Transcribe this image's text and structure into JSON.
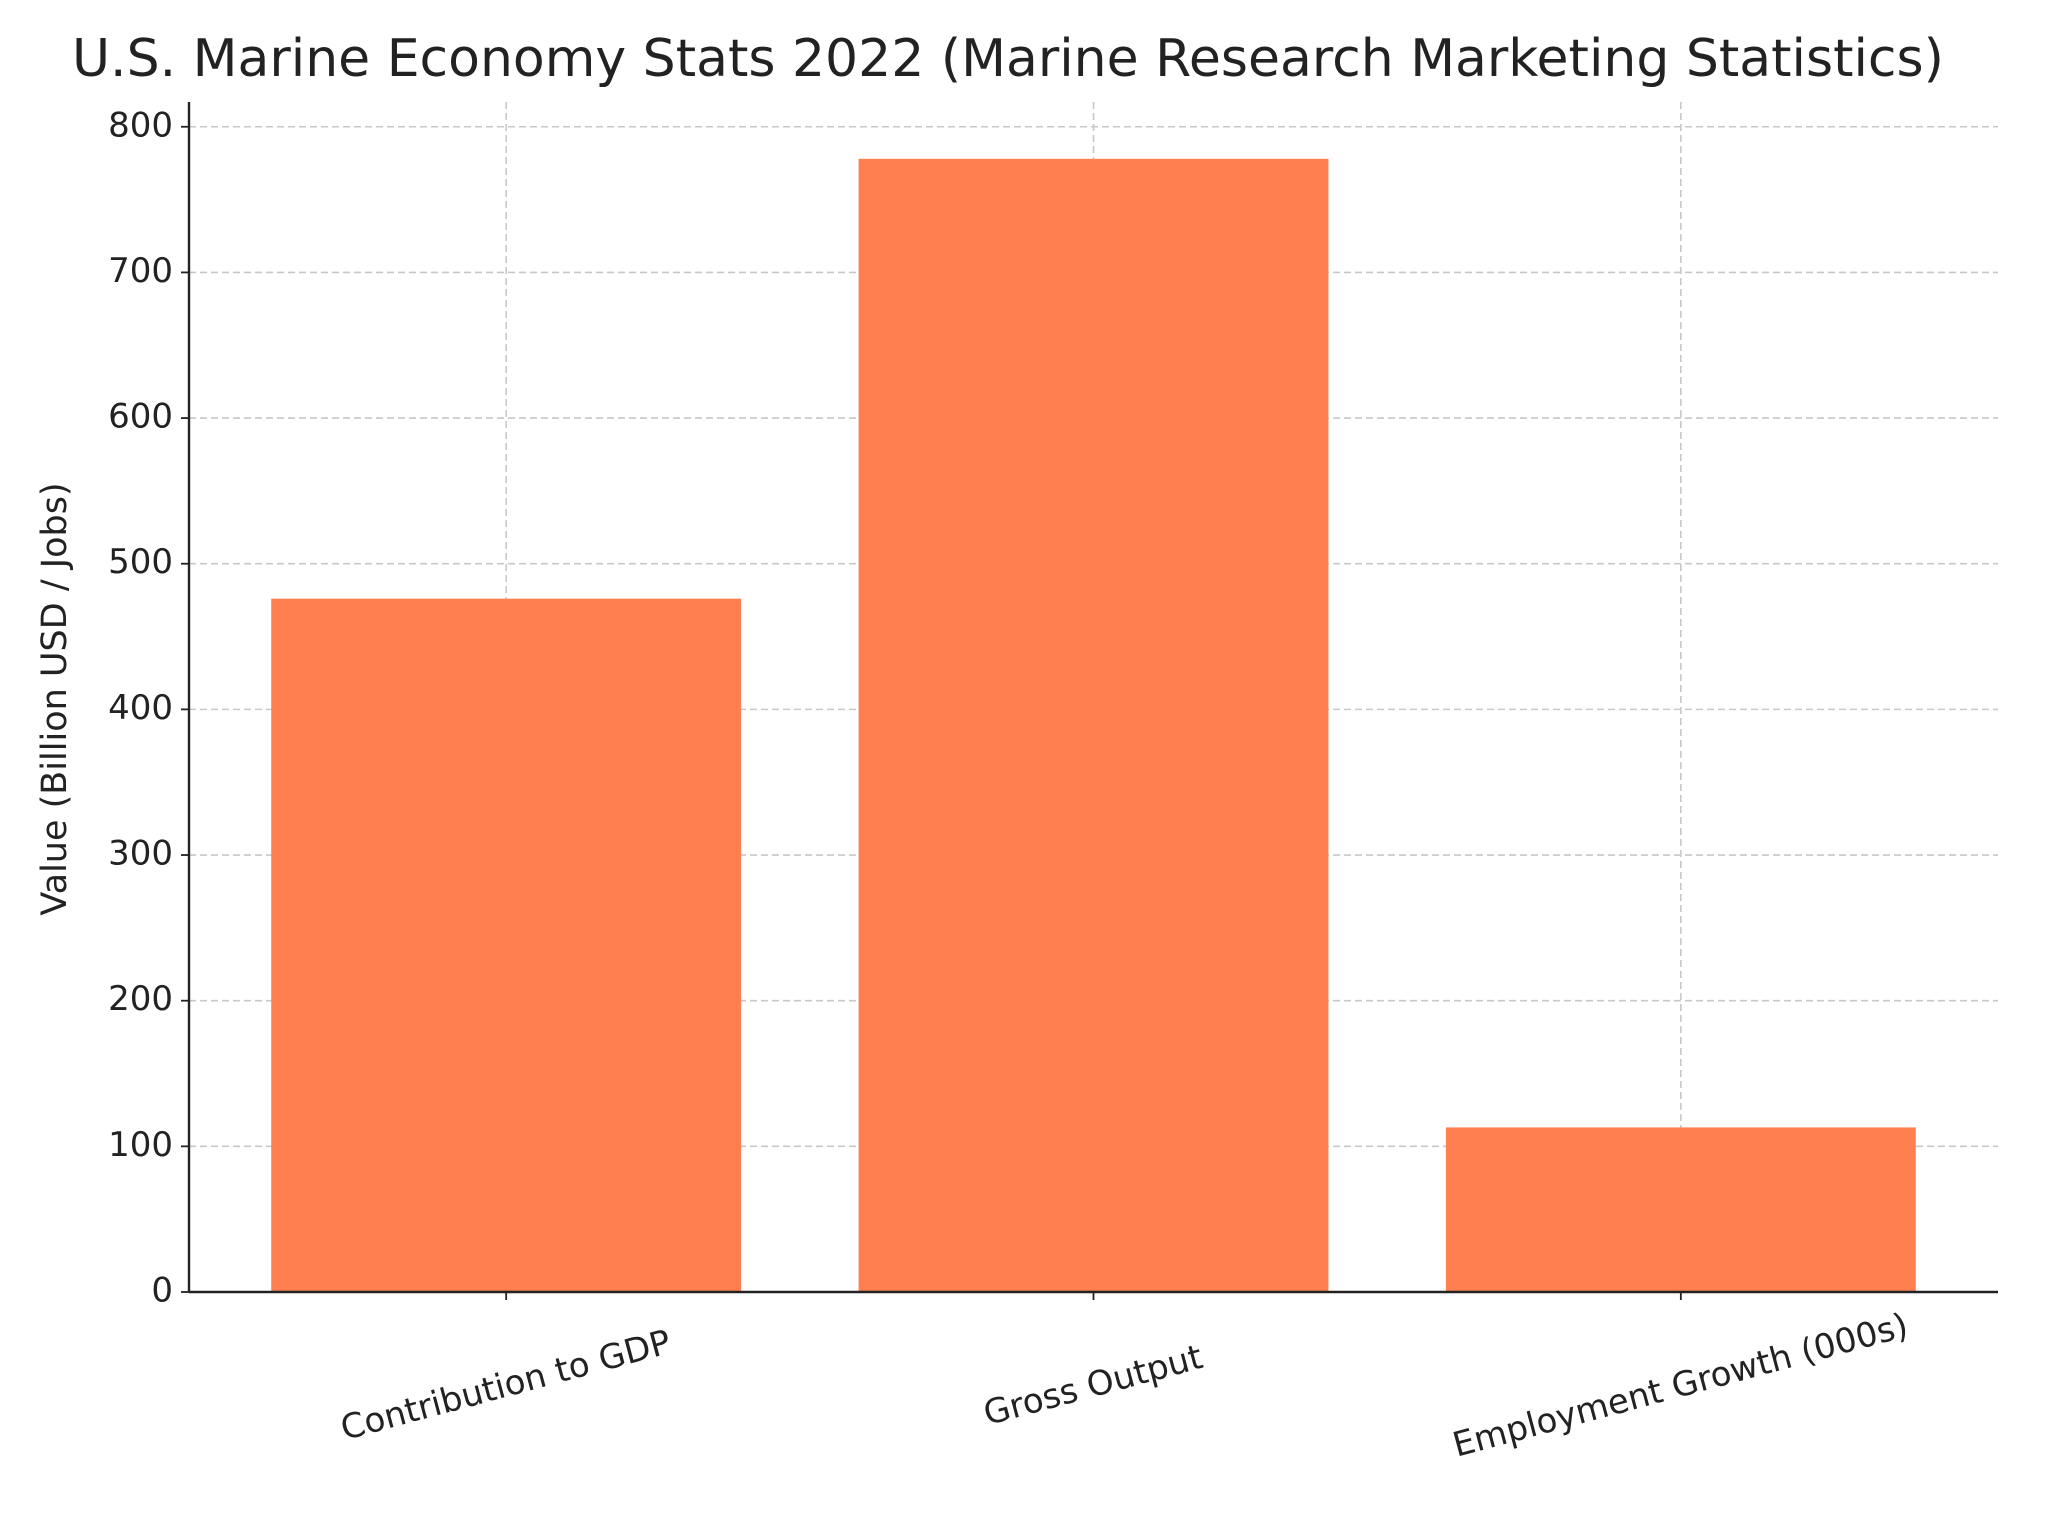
{
  "chart_data": {
    "type": "bar",
    "title": "U.S. Marine Economy Stats 2022 (Marine Research Marketing Statistics)",
    "y_label": "Value (Billion USD / Jobs)",
    "categories": [
      "Contribution to GDP",
      "Gross Output",
      "Employment Growth (000s)"
    ],
    "values": [
      476,
      778,
      113
    ],
    "color": "#ff7f50",
    "ylim": [
      0,
      817
    ],
    "yticks": [
      0,
      100,
      200,
      300,
      400,
      500,
      600,
      700,
      800
    ],
    "grid": true
  }
}
